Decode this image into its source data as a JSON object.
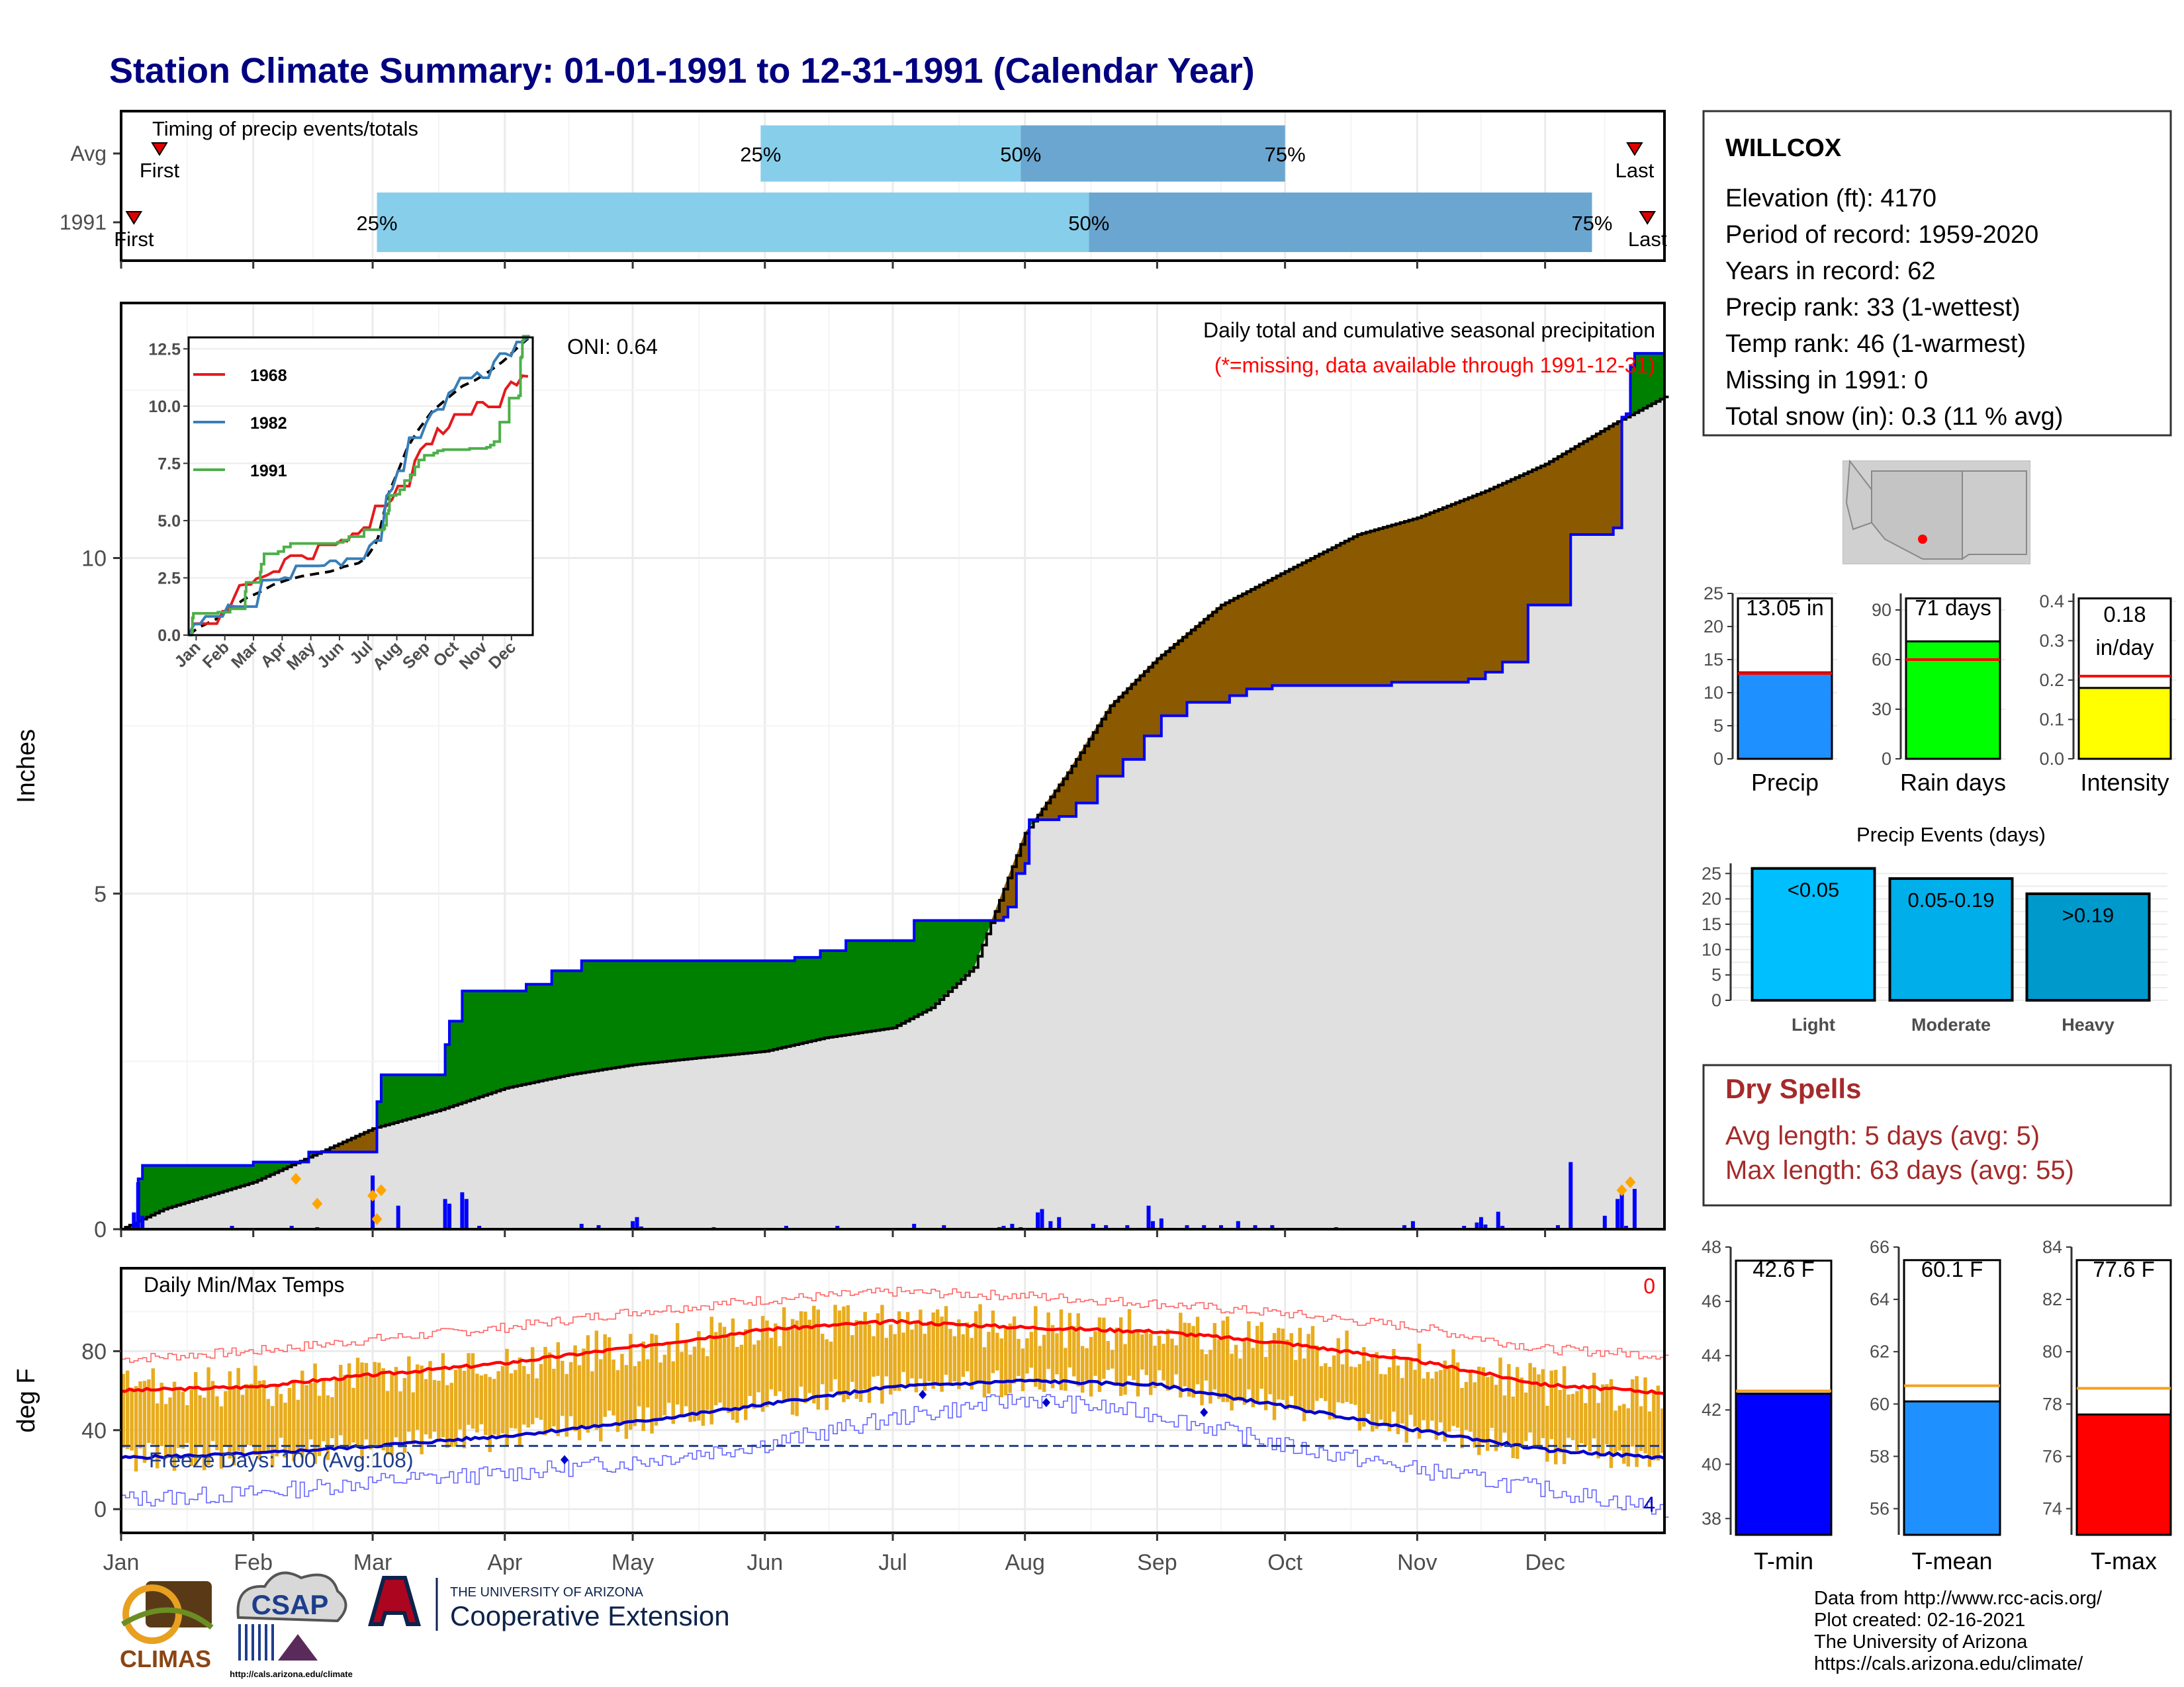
{
  "page": {
    "title": "Station Climate Summary: 01-01-1991 to 12-31-1991 (Calendar Year)"
  },
  "colors": {
    "title": "#000080",
    "above_normal": "#008000",
    "below_normal": "#8B5A00",
    "normal": "#E0E0E0",
    "obs_line": "#0000FF",
    "daily_bar": "#0000FF",
    "tmax_line": "#FF0000",
    "tmin_line": "#0000CC",
    "range_bar": "#E8AC1E",
    "dry_spell_text": "#A52A2A",
    "missing_note": "#FF0000",
    "q1_box": "#87CEEB",
    "q2_box": "#6AA6D0"
  },
  "timing_panel": {
    "title": "Timing of precip events/totals",
    "rows": [
      {
        "label": "Avg",
        "first_day": 9,
        "q25_day": 150,
        "q50_day": 211,
        "q75_day": 273,
        "last_day": 355,
        "q25_label": "25%",
        "q50_label": "50%",
        "q75_label": "75%",
        "first_label": "First",
        "last_label": "Last"
      },
      {
        "label": "1991",
        "first_day": 3,
        "q25_day": 60,
        "q50_day": 227,
        "q75_day": 345,
        "last_day": 358,
        "q25_label": "25%",
        "q50_label": "50%",
        "q75_label": "75%",
        "first_label": "First",
        "last_label": "Last"
      }
    ]
  },
  "month_labels": [
    "Jan",
    "Feb",
    "Mar",
    "Apr",
    "May",
    "Jun",
    "Jul",
    "Aug",
    "Sep",
    "Oct",
    "Nov",
    "Dec"
  ],
  "month_starts": [
    0,
    31,
    59,
    90,
    120,
    151,
    181,
    212,
    243,
    273,
    304,
    334
  ],
  "precip_panel": {
    "ylabel": "Inches",
    "yticks": [
      0,
      5,
      10
    ],
    "ylim": [
      0,
      13.8
    ],
    "oni": "ONI: 0.64",
    "caption": "Daily total and cumulative seasonal precipitation",
    "missing_note": "(*=missing, data available through 1991-12-31)"
  },
  "temp_panel": {
    "title": "Daily Min/Max Temps",
    "ylabel": "deg F",
    "yticks": [
      0,
      40,
      80
    ],
    "ylim": [
      -12,
      122
    ],
    "freeze_label": "Freeze Days: 100 (Avg:108)",
    "corner_top": "0",
    "corner_bottom": "4",
    "freeze_line": 32
  },
  "inset": {
    "yticks": [
      "0.0",
      "2.5",
      "5.0",
      "7.5",
      "10.0",
      "12.5"
    ],
    "months": [
      "Jan",
      "Feb",
      "Mar",
      "Apr",
      "May",
      "Jun",
      "Jul",
      "Aug",
      "Sep",
      "Oct",
      "Nov",
      "Dec"
    ],
    "legend": [
      {
        "name": "1968",
        "color": "#E41A1C"
      },
      {
        "name": "1982",
        "color": "#377EB8"
      },
      {
        "name": "1991",
        "color": "#4DAF4A"
      }
    ]
  },
  "info_box": {
    "station": "WILLCOX",
    "lines": [
      "Elevation (ft): 4170",
      "Period of record: 1959-2020",
      "Years in record: 62",
      "Precip rank: 33 (1-wettest)",
      "Temp rank: 46 (1-warmest)",
      "Missing in 1991: 0",
      "Total snow (in): 0.3 (11 % avg)"
    ]
  },
  "mini_bars": [
    {
      "label": "Precip",
      "value_label": "13.05 in",
      "value": 13.05,
      "avg": 12.9,
      "ylim": [
        0,
        25
      ],
      "ticks": [
        "0",
        "5",
        "10",
        "15",
        "20",
        "25"
      ],
      "color": "#1E90FF"
    },
    {
      "label": "Rain days",
      "value_label": "71 days",
      "value": 71,
      "avg": 60,
      "ylim": [
        0,
        100
      ],
      "ticks": [
        "0",
        "30",
        "60",
        "90"
      ],
      "tick_vals": [
        0,
        30,
        60,
        90
      ],
      "color": "#00FF00"
    },
    {
      "label": "Intensity",
      "value_label": "0.18 in/day",
      "value": 0.18,
      "avg": 0.21,
      "ylim": [
        0,
        0.42
      ],
      "ticks": [
        "0.0",
        "0.1",
        "0.2",
        "0.3",
        "0.4"
      ],
      "color": "#FFFF00"
    }
  ],
  "events_panel": {
    "title": "Precip Events (days)",
    "yticks": [
      "0",
      "5",
      "10",
      "15",
      "20",
      "25"
    ],
    "bars": [
      {
        "label": "Light",
        "range": "<0.05",
        "value": 26,
        "color": "#00BFFF"
      },
      {
        "label": "Moderate",
        "range": "0.05-0.19",
        "value": 24,
        "color": "#00AEEA"
      },
      {
        "label": "Heavy",
        "range": ">0.19",
        "value": 21,
        "color": "#0099CC"
      }
    ]
  },
  "dry_spells": {
    "title": "Dry Spells",
    "avg_length": "Avg length: 5 days (avg: 5)",
    "max_length": "Max length: 63 days (avg: 55)"
  },
  "temp_bars": [
    {
      "label": "T-min",
      "value_label": "42.6 F",
      "value": 42.6,
      "avg": 42.7,
      "ylim": [
        37.4,
        48
      ],
      "ticks": [
        "38",
        "40",
        "42",
        "44",
        "46",
        "48"
      ],
      "color": "#0000FF"
    },
    {
      "label": "T-mean",
      "value_label": "60.1 F",
      "value": 60.1,
      "avg": 60.7,
      "ylim": [
        55,
        66
      ],
      "ticks": [
        "56",
        "58",
        "60",
        "62",
        "64",
        "66"
      ],
      "color": "#1E90FF"
    },
    {
      "label": "T-max",
      "value_label": "77.6 F",
      "value": 77.6,
      "avg": 78.6,
      "ylim": [
        73,
        84
      ],
      "ticks": [
        "74",
        "76",
        "78",
        "80",
        "82",
        "84"
      ],
      "color": "#FF0000"
    }
  ],
  "footer": {
    "lines": [
      "Data from http://www.rcc-acis.org/",
      "Plot created: 02-16-2021",
      "The University of Arizona",
      "https://cals.arizona.edu/climate/"
    ],
    "logos": {
      "climas": "CLIMAS",
      "csap": "CSAP",
      "csap_url": "http://cals.arizona.edu/climate",
      "ua_small": "THE UNIVERSITY OF ARIZONA",
      "ua_big": "Cooperative Extension"
    }
  },
  "chart_data": {
    "type": "area",
    "x_unit": "day of year 1991 (0 = Jan 1)",
    "cumulative_observed_1991": [
      [
        0,
        0.0
      ],
      [
        3,
        0.05
      ],
      [
        4,
        0.75
      ],
      [
        5,
        0.95
      ],
      [
        31,
        1.0
      ],
      [
        44,
        1.15
      ],
      [
        60,
        1.9
      ],
      [
        61,
        2.3
      ],
      [
        63,
        2.3
      ],
      [
        75,
        2.3
      ],
      [
        76,
        2.75
      ],
      [
        77,
        3.1
      ],
      [
        80,
        3.55
      ],
      [
        95,
        3.65
      ],
      [
        101,
        3.85
      ],
      [
        108,
        4.0
      ],
      [
        151,
        4.0
      ],
      [
        158,
        4.05
      ],
      [
        164,
        4.15
      ],
      [
        170,
        4.3
      ],
      [
        185,
        4.3
      ],
      [
        186,
        4.6
      ],
      [
        203,
        4.6
      ],
      [
        207,
        4.65
      ],
      [
        208,
        4.8
      ],
      [
        210,
        5.3
      ],
      [
        212,
        5.45
      ],
      [
        213,
        6.1
      ],
      [
        220,
        6.15
      ],
      [
        224,
        6.35
      ],
      [
        229,
        6.75
      ],
      [
        235,
        7.0
      ],
      [
        240,
        7.35
      ],
      [
        244,
        7.65
      ],
      [
        250,
        7.85
      ],
      [
        260,
        7.95
      ],
      [
        264,
        8.05
      ],
      [
        270,
        8.1
      ],
      [
        285,
        8.1
      ],
      [
        298,
        8.15
      ],
      [
        316,
        8.2
      ],
      [
        320,
        8.3
      ],
      [
        324,
        8.45
      ],
      [
        330,
        9.3
      ],
      [
        340,
        9.35
      ],
      [
        340,
        10.35
      ],
      [
        350,
        10.45
      ],
      [
        352,
        12.1
      ],
      [
        353,
        12.15
      ],
      [
        354,
        12.85
      ],
      [
        355,
        13.05
      ],
      [
        362,
        13.05
      ]
    ],
    "cumulative_normal": [
      [
        0,
        0.0
      ],
      [
        10,
        0.3
      ],
      [
        31,
        0.7
      ],
      [
        45,
        1.1
      ],
      [
        59,
        1.5
      ],
      [
        75,
        1.78
      ],
      [
        90,
        2.1
      ],
      [
        105,
        2.3
      ],
      [
        120,
        2.45
      ],
      [
        135,
        2.55
      ],
      [
        151,
        2.65
      ],
      [
        165,
        2.85
      ],
      [
        181,
        3.0
      ],
      [
        190,
        3.3
      ],
      [
        200,
        3.9
      ],
      [
        212,
        5.9
      ],
      [
        222,
        6.8
      ],
      [
        232,
        7.8
      ],
      [
        243,
        8.5
      ],
      [
        258,
        9.3
      ],
      [
        273,
        9.8
      ],
      [
        290,
        10.35
      ],
      [
        304,
        10.6
      ],
      [
        320,
        11.0
      ],
      [
        334,
        11.4
      ],
      [
        350,
        12.0
      ],
      [
        362,
        12.4
      ]
    ],
    "daily_precip": [
      [
        3,
        0.25
      ],
      [
        4,
        0.7
      ],
      [
        5,
        0.2
      ],
      [
        14,
        0.02
      ],
      [
        26,
        0.05
      ],
      [
        40,
        0.05
      ],
      [
        41,
        0.02
      ],
      [
        46,
        0.03
      ],
      [
        59,
        0.8
      ],
      [
        65,
        0.35
      ],
      [
        76,
        0.45
      ],
      [
        77,
        0.38
      ],
      [
        80,
        0.55
      ],
      [
        81,
        0.45
      ],
      [
        84,
        0.05
      ],
      [
        97,
        0.02
      ],
      [
        108,
        0.08
      ],
      [
        112,
        0.06
      ],
      [
        120,
        0.12
      ],
      [
        121,
        0.18
      ],
      [
        122,
        0.04
      ],
      [
        139,
        0.03
      ],
      [
        152,
        0.02
      ],
      [
        156,
        0.05
      ],
      [
        162,
        0.02
      ],
      [
        168,
        0.05
      ],
      [
        178,
        0.02
      ],
      [
        186,
        0.08
      ],
      [
        193,
        0.06
      ],
      [
        206,
        0.03
      ],
      [
        207,
        0.05
      ],
      [
        209,
        0.08
      ],
      [
        211,
        0.03
      ],
      [
        215,
        0.25
      ],
      [
        216,
        0.3
      ],
      [
        218,
        0.12
      ],
      [
        220,
        0.18
      ],
      [
        225,
        0.02
      ],
      [
        228,
        0.08
      ],
      [
        231,
        0.06
      ],
      [
        233,
        0.02
      ],
      [
        236,
        0.06
      ],
      [
        241,
        0.35
      ],
      [
        242,
        0.12
      ],
      [
        244,
        0.16
      ],
      [
        250,
        0.06
      ],
      [
        254,
        0.06
      ],
      [
        258,
        0.06
      ],
      [
        262,
        0.12
      ],
      [
        266,
        0.06
      ],
      [
        270,
        0.06
      ],
      [
        278,
        0.02
      ],
      [
        285,
        0.03
      ],
      [
        301,
        0.06
      ],
      [
        303,
        0.12
      ],
      [
        315,
        0.05
      ],
      [
        318,
        0.1
      ],
      [
        319,
        0.18
      ],
      [
        320,
        0.07
      ],
      [
        323,
        0.26
      ],
      [
        324,
        0.05
      ],
      [
        337,
        0.06
      ],
      [
        340,
        1.0
      ],
      [
        348,
        0.2
      ],
      [
        351,
        0.45
      ],
      [
        352,
        0.6
      ],
      [
        353,
        0.05
      ],
      [
        355,
        0.6
      ],
      [
        356,
        0.02
      ]
    ],
    "snow_markers": [
      [
        41,
        0.75
      ],
      [
        46,
        0.38
      ],
      [
        59,
        0.5
      ],
      [
        60,
        0.15
      ],
      [
        61,
        0.58
      ],
      [
        352,
        0.58
      ],
      [
        354,
        0.7
      ]
    ],
    "tmax_normal_knots": [
      [
        0,
        60
      ],
      [
        31,
        62
      ],
      [
        59,
        68
      ],
      [
        90,
        74
      ],
      [
        120,
        82
      ],
      [
        151,
        91
      ],
      [
        181,
        95
      ],
      [
        212,
        92
      ],
      [
        243,
        90
      ],
      [
        273,
        84
      ],
      [
        304,
        75
      ],
      [
        334,
        63
      ],
      [
        362,
        59
      ]
    ],
    "tmin_normal_knots": [
      [
        0,
        26
      ],
      [
        31,
        28
      ],
      [
        59,
        32
      ],
      [
        90,
        37
      ],
      [
        120,
        44
      ],
      [
        151,
        53
      ],
      [
        181,
        62
      ],
      [
        212,
        65
      ],
      [
        243,
        63
      ],
      [
        273,
        52
      ],
      [
        304,
        40
      ],
      [
        334,
        30
      ],
      [
        362,
        26
      ]
    ],
    "tmax_record_knots": [
      [
        0,
        76
      ],
      [
        31,
        80
      ],
      [
        59,
        86
      ],
      [
        90,
        92
      ],
      [
        120,
        100
      ],
      [
        151,
        106
      ],
      [
        181,
        110
      ],
      [
        212,
        108
      ],
      [
        243,
        104
      ],
      [
        273,
        99
      ],
      [
        304,
        92
      ],
      [
        334,
        81
      ],
      [
        362,
        78
      ]
    ],
    "tmin_record_knots": [
      [
        0,
        5
      ],
      [
        31,
        8
      ],
      [
        59,
        14
      ],
      [
        90,
        18
      ],
      [
        120,
        24
      ],
      [
        151,
        33
      ],
      [
        181,
        46
      ],
      [
        212,
        56
      ],
      [
        243,
        48
      ],
      [
        273,
        32
      ],
      [
        304,
        20
      ],
      [
        334,
        10
      ],
      [
        362,
        0
      ]
    ],
    "tmin_record_diamonds": [
      [
        104,
        25
      ],
      [
        188,
        58
      ],
      [
        217,
        54
      ],
      [
        254,
        49
      ]
    ]
  }
}
